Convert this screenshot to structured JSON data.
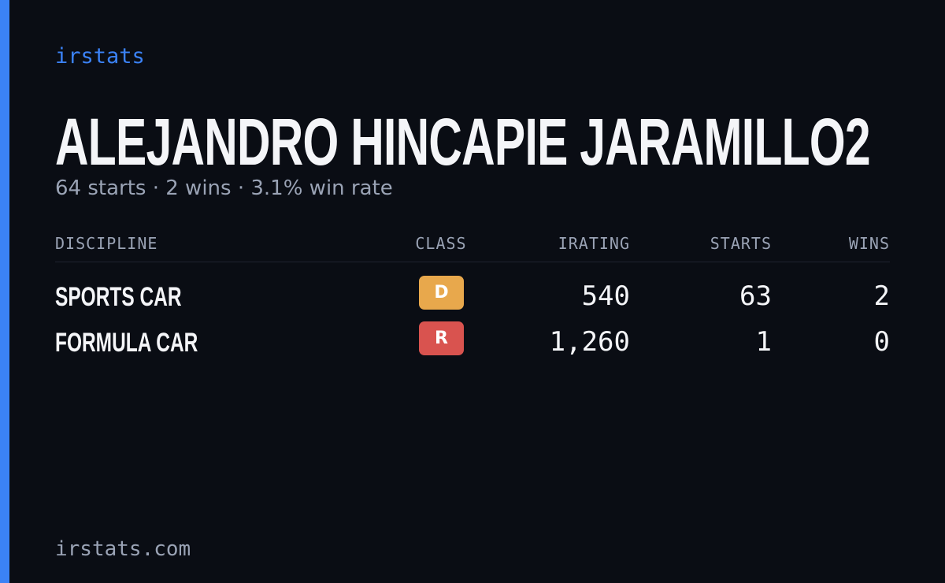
{
  "brand": "irstats",
  "title": "ALEJANDRO HINCAPIE JARAMILLO2",
  "summary": "64 starts · 2 wins · 3.1% win rate",
  "table": {
    "headers": [
      "DISCIPLINE",
      "CLASS",
      "IRATING",
      "STARTS",
      "WINS"
    ],
    "rows": [
      {
        "discipline": "SPORTS CAR",
        "class": "D",
        "class_color": "#e8a84c",
        "irating": "540",
        "starts": "63",
        "wins": "2"
      },
      {
        "discipline": "FORMULA CAR",
        "class": "R",
        "class_color": "#d9534f",
        "irating": "1,260",
        "starts": "1",
        "wins": "0"
      }
    ]
  },
  "footer": "irstats.com"
}
